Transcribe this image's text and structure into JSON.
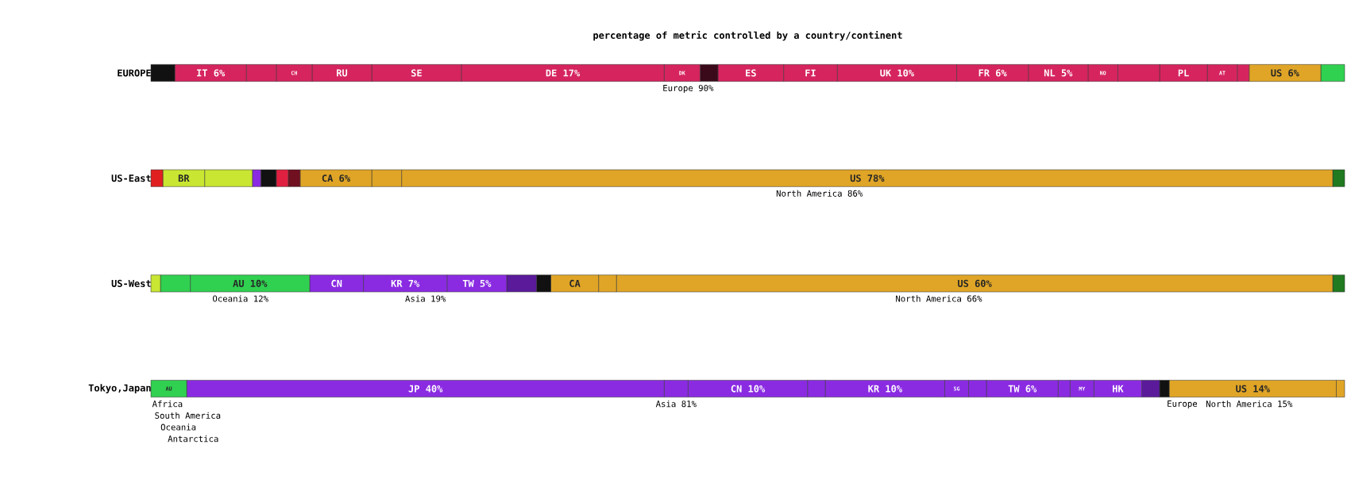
{
  "chart_data": [
    {
      "type": "bar",
      "orientation": "horizontal",
      "stacked": true,
      "title": "percentage of metric controlled by a country/continent",
      "categories": [
        "EUROPE"
      ],
      "tick_labels": "y",
      "series": [
        {
          "color": "#111111",
          "values": [
            2
          ]
        },
        {
          "color": "#d6245f",
          "values": [
            6
          ],
          "value_labels": [
            "IT 6%"
          ]
        },
        {
          "color": "#d6245f",
          "values": [
            2.5
          ]
        },
        {
          "color": "#d6245f",
          "values": [
            3
          ],
          "value_labels": [
            "CH"
          ]
        },
        {
          "color": "#d6245f",
          "values": [
            5
          ],
          "value_labels": [
            "RU"
          ]
        },
        {
          "color": "#d6245f",
          "values": [
            7.5
          ],
          "value_labels": [
            "SE"
          ]
        },
        {
          "color": "#d6245f",
          "values": [
            17
          ],
          "value_labels": [
            "DE 17%"
          ]
        },
        {
          "color": "#d6245f",
          "values": [
            3
          ],
          "value_labels": [
            "DK"
          ]
        },
        {
          "color": "#3a0a1a",
          "values": [
            1.5
          ]
        },
        {
          "color": "#d6245f",
          "values": [
            5.5
          ],
          "value_labels": [
            "ES"
          ]
        },
        {
          "color": "#d6245f",
          "values": [
            4.5
          ],
          "value_labels": [
            "FI"
          ]
        },
        {
          "color": "#d6245f",
          "values": [
            10
          ],
          "value_labels": [
            "UK 10%"
          ]
        },
        {
          "color": "#d6245f",
          "values": [
            6
          ],
          "value_labels": [
            "FR 6%"
          ]
        },
        {
          "color": "#d6245f",
          "values": [
            5
          ],
          "value_labels": [
            "NL 5%"
          ]
        },
        {
          "color": "#d6245f",
          "values": [
            2.5
          ],
          "value_labels": [
            "NO"
          ]
        },
        {
          "color": "#d6245f",
          "values": [
            3.5
          ]
        },
        {
          "color": "#d6245f",
          "values": [
            4
          ],
          "value_labels": [
            "PL"
          ]
        },
        {
          "color": "#d6245f",
          "values": [
            2.5
          ],
          "value_labels": [
            "AT"
          ]
        },
        {
          "color": "#d6245f",
          "values": [
            1
          ]
        },
        {
          "color": "#e0a526",
          "values": [
            6
          ],
          "value_labels": [
            "US 6%"
          ]
        },
        {
          "color": "#30d050",
          "values": [
            2
          ]
        }
      ],
      "annotations": [
        "Europe 90%"
      ]
    },
    {
      "type": "bar",
      "orientation": "horizontal",
      "stacked": true,
      "categories": [
        "US-East"
      ],
      "tick_labels": "y",
      "series": [
        {
          "color": "#e02020",
          "values": [
            1
          ]
        },
        {
          "color": "#c8e632",
          "values": [
            3.5
          ],
          "value_labels": [
            "BR"
          ]
        },
        {
          "color": "#c8e632",
          "values": [
            4
          ]
        },
        {
          "color": "#8a2be2",
          "values": [
            0.7
          ]
        },
        {
          "color": "#111111",
          "values": [
            1.3
          ]
        },
        {
          "color": "#e02040",
          "values": [
            1
          ]
        },
        {
          "color": "#701020",
          "values": [
            1
          ]
        },
        {
          "color": "#e0a526",
          "values": [
            6
          ],
          "value_labels": [
            "CA 6%"
          ]
        },
        {
          "color": "#e0a526",
          "values": [
            2.5
          ]
        },
        {
          "color": "#e0a526",
          "values": [
            78
          ],
          "value_labels": [
            "US 78%"
          ]
        },
        {
          "color": "#207a20",
          "values": [
            1
          ]
        }
      ],
      "annotations": [
        "North America 86%"
      ]
    },
    {
      "type": "bar",
      "orientation": "horizontal",
      "stacked": true,
      "categories": [
        "US-West"
      ],
      "tick_labels": "y",
      "series": [
        {
          "color": "#c8e632",
          "values": [
            0.8
          ]
        },
        {
          "color": "#30d050",
          "values": [
            2.5
          ]
        },
        {
          "color": "#30d050",
          "values": [
            10
          ],
          "value_labels": [
            "AU 10%"
          ]
        },
        {
          "color": "#8a2be2",
          "values": [
            4.5
          ],
          "value_labels": [
            "CN"
          ]
        },
        {
          "color": "#8a2be2",
          "values": [
            7
          ],
          "value_labels": [
            "KR 7%"
          ]
        },
        {
          "color": "#8a2be2",
          "values": [
            5
          ],
          "value_labels": [
            "TW 5%"
          ]
        },
        {
          "color": "#5a1a9a",
          "values": [
            2.5
          ]
        },
        {
          "color": "#111111",
          "values": [
            1.2
          ]
        },
        {
          "color": "#e0a526",
          "values": [
            4
          ],
          "value_labels": [
            "CA"
          ]
        },
        {
          "color": "#e0a526",
          "values": [
            1.5
          ]
        },
        {
          "color": "#e0a526",
          "values": [
            60
          ],
          "value_labels": [
            "US 60%"
          ]
        },
        {
          "color": "#207a20",
          "values": [
            1
          ]
        }
      ],
      "annotations": [
        "Oceania 12%",
        "Asia 19%",
        "North America 66%"
      ]
    },
    {
      "type": "bar",
      "orientation": "horizontal",
      "stacked": true,
      "categories": [
        "Tokyo,Japan"
      ],
      "tick_labels": "y",
      "series": [
        {
          "color": "#30d050",
          "values": [
            3
          ],
          "value_labels": [
            "AU"
          ]
        },
        {
          "color": "#8a2be2",
          "values": [
            40
          ],
          "value_labels": [
            "JP 40%"
          ]
        },
        {
          "color": "#8a2be2",
          "values": [
            2
          ]
        },
        {
          "color": "#8a2be2",
          "values": [
            10
          ],
          "value_labels": [
            "CN 10%"
          ]
        },
        {
          "color": "#8a2be2",
          "values": [
            1.5
          ]
        },
        {
          "color": "#8a2be2",
          "values": [
            10
          ],
          "value_labels": [
            "KR 10%"
          ]
        },
        {
          "color": "#8a2be2",
          "values": [
            2
          ],
          "value_labels": [
            "SG"
          ]
        },
        {
          "color": "#8a2be2",
          "values": [
            1.5
          ]
        },
        {
          "color": "#8a2be2",
          "values": [
            6
          ],
          "value_labels": [
            "TW 6%"
          ]
        },
        {
          "color": "#8a2be2",
          "values": [
            1
          ]
        },
        {
          "color": "#8a2be2",
          "values": [
            2
          ],
          "value_labels": [
            "MY"
          ]
        },
        {
          "color": "#8a2be2",
          "values": [
            4
          ],
          "value_labels": [
            "HK"
          ]
        },
        {
          "color": "#5a1a9a",
          "values": [
            1.5
          ]
        },
        {
          "color": "#111111",
          "values": [
            0.8
          ]
        },
        {
          "color": "#e0a526",
          "values": [
            14
          ],
          "value_labels": [
            "US 14%"
          ]
        },
        {
          "color": "#e0a526",
          "values": [
            0.7
          ]
        }
      ],
      "annotations": [
        "Asia 81%",
        "North America 15%",
        "Africa",
        "South America",
        "Oceania",
        "Antarctica",
        "Europe"
      ]
    }
  ]
}
